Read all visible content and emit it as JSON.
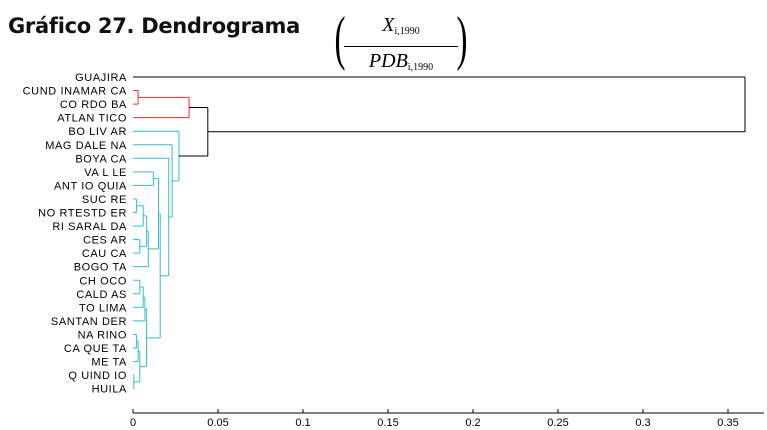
{
  "figure": {
    "title": "Gráfico 27. Dendrograma",
    "formula": {
      "numerator": "X",
      "numerator_sub": "i,1990",
      "denominator": "PDB",
      "denominator_sub": "i,1990"
    }
  },
  "colors": {
    "cluster_red": "#e0302a",
    "cluster_cyan": "#34bcd4",
    "link_black": "#000000"
  },
  "chart_data": {
    "type": "dendrogram",
    "orientation": "horizontal",
    "leaves": [
      "GUAJIRA",
      "CUND INAMAR CA",
      "CO RDO BA",
      "ATLAN TICO",
      "BO LIV AR",
      "MAG DALE NA",
      "BOYA CA",
      "VA L LE",
      "ANT IO QUIA",
      "SUC RE",
      "NO RTESTD ER",
      "RI SARAL DA",
      "CES AR",
      "CAU CA",
      "BOGO TA",
      "CH OCO",
      "CALD AS",
      "TO LIMA",
      "SANTAN DER",
      "NA RINO",
      "CA QUE TA",
      "ME TA",
      "Q UIND IO",
      "HUILA"
    ],
    "xticks": [
      "0",
      "0.05",
      "0.1",
      "0.15",
      "0.2",
      "0.25",
      "0.3",
      "0.35"
    ],
    "xlim": [
      0,
      0.37
    ],
    "merges": [
      {
        "a": "QUINDIO",
        "b": "HUILA",
        "height": 0.0005,
        "color": "cyan"
      },
      {
        "a": "NARINO",
        "b": "CAQUETA",
        "height": 0.002,
        "color": "cyan"
      },
      {
        "a": "SUCRE",
        "b": "NORTESTDER",
        "height": 0.002,
        "color": "cyan"
      },
      {
        "a": "CUNDINAMARCA",
        "b": "CORDOBA",
        "height": 0.003,
        "color": "red"
      },
      {
        "a": "CHOCO",
        "b": "CALDAS",
        "height": 0.004,
        "color": "cyan"
      },
      {
        "a": "CESAR",
        "b": "CAUCA",
        "height": 0.004,
        "color": "cyan"
      },
      {
        "a": "{NARINO,CAQUETA}",
        "b": "META",
        "height": 0.003,
        "color": "cyan"
      },
      {
        "a": "{CHOCO,CALDAS}",
        "b": "TOLIMA",
        "height": 0.006,
        "color": "cyan"
      },
      {
        "a": "{CHOCO,CALDAS,TOLIMA}",
        "b": "SANTANDER",
        "height": 0.007,
        "color": "cyan"
      },
      {
        "a": "{SUCRE,NORTESTDER}",
        "b": "RISARALDA",
        "height": 0.006,
        "color": "cyan"
      },
      {
        "a": "{..,RISARALDA}",
        "b": "{CESAR,CAUCA}",
        "height": 0.008,
        "color": "cyan"
      },
      {
        "a": "{..CESAR,CAUCA}",
        "b": "BOGOTA",
        "height": 0.009,
        "color": "cyan"
      },
      {
        "a": "VALLE",
        "b": "ANTIOQUIA",
        "height": 0.012,
        "color": "cyan"
      },
      {
        "a": "{VALLE,ANTIOQUIA}",
        "b": "{SUCRE..BOGOTA}",
        "height": 0.015,
        "color": "cyan"
      },
      {
        "a": "{..}",
        "b": "{SANTANDER..HUILA}",
        "height": 0.016,
        "color": "cyan"
      },
      {
        "a": "BOYACA",
        "b": "{VALLE..HUILA}",
        "height": 0.021,
        "color": "cyan"
      },
      {
        "a": "MAGDALENA",
        "b": "{BOYACA..HUILA}",
        "height": 0.023,
        "color": "cyan"
      },
      {
        "a": "BOLIVAR",
        "b": "{MAGDALENA..HUILA}",
        "height": 0.027,
        "color": "cyan"
      },
      {
        "a": "{CUNDINAMARCA,CORDOBA}",
        "b": "ATLANTICO",
        "height": 0.033,
        "color": "red"
      },
      {
        "a": "{CUND..ATLANTICO}",
        "b": "{BOLIVAR..HUILA}",
        "height": 0.044,
        "color": "black"
      },
      {
        "a": "GUAJIRA",
        "b": "{CUND..HUILA}",
        "height": 0.36,
        "color": "black"
      }
    ]
  }
}
